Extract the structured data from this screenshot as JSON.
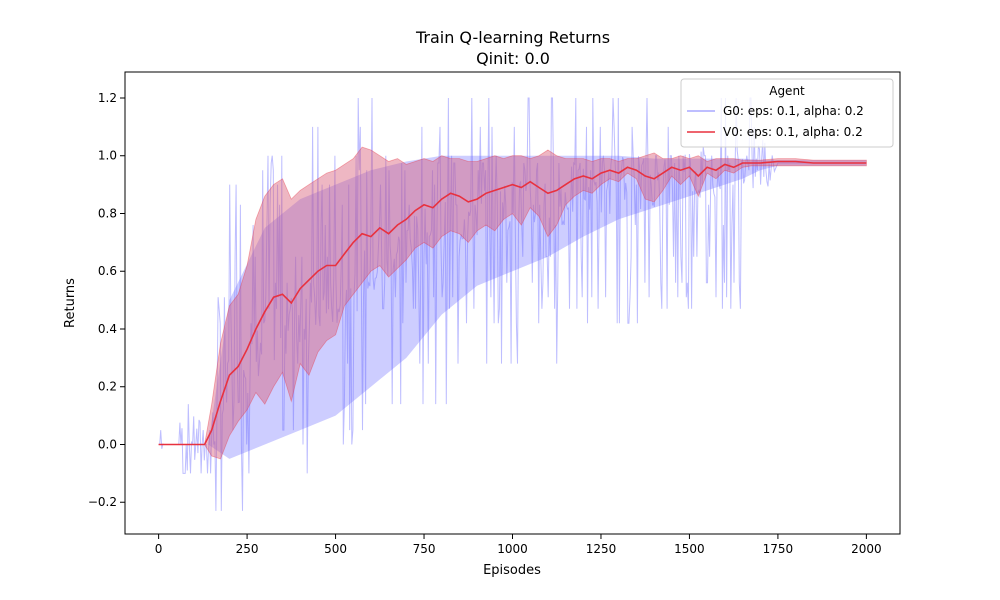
{
  "chart_data": {
    "type": "line",
    "title": "Train Q-learning Returns",
    "subtitle": "Qinit: 0.0",
    "xlabel": "Episodes",
    "ylabel": "Returns",
    "xlim": [
      -95,
      2095
    ],
    "ylim": [
      -0.31,
      1.29
    ],
    "xticks": [
      0,
      250,
      500,
      750,
      1000,
      1250,
      1500,
      1750,
      2000
    ],
    "yticks": [
      -0.2,
      0.0,
      0.2,
      0.4,
      0.6,
      0.8,
      1.0,
      1.2
    ],
    "ytick_labels": [
      "−0.2",
      "0.0",
      "0.2",
      "0.4",
      "0.6",
      "0.8",
      "1.0",
      "1.2"
    ],
    "grid": false,
    "legend": {
      "title": "Agent",
      "position": "top-right"
    },
    "series": [
      {
        "name": "G0: eps: 0.1, alpha: 0.2",
        "color": "#6f6fff",
        "style": "noisy-line-with-band",
        "x": [
          0,
          140,
          200,
          300,
          400,
          500,
          600,
          700,
          800,
          900,
          1000,
          1100,
          1200,
          1300,
          1400,
          1500,
          1600,
          1650,
          1700,
          1750,
          1800,
          1900,
          2000
        ],
        "mean": [
          0.0,
          0.0,
          0.2,
          0.35,
          0.45,
          0.5,
          0.6,
          0.68,
          0.75,
          0.8,
          0.82,
          0.85,
          0.88,
          0.9,
          0.92,
          0.94,
          0.95,
          0.96,
          0.97,
          0.975,
          0.975,
          0.975,
          0.975
        ],
        "lower": [
          0.0,
          0.0,
          -0.05,
          0.0,
          0.05,
          0.1,
          0.2,
          0.3,
          0.45,
          0.55,
          0.6,
          0.65,
          0.72,
          0.78,
          0.82,
          0.86,
          0.9,
          0.92,
          0.95,
          0.965,
          0.965,
          0.965,
          0.965
        ],
        "upper": [
          0.0,
          0.0,
          0.5,
          0.75,
          0.85,
          0.9,
          0.95,
          0.98,
          1.0,
          1.0,
          1.0,
          1.0,
          1.0,
          1.0,
          0.99,
          0.99,
          0.99,
          0.99,
          0.985,
          0.985,
          0.985,
          0.985,
          0.985
        ],
        "noise_top": [
          0.14,
          0.14,
          0.95,
          1.0,
          1.1,
          1.2,
          1.2,
          1.2,
          1.2,
          1.2,
          1.2,
          1.2,
          1.2,
          1.2,
          1.2,
          1.2,
          1.2,
          1.2,
          1.2,
          0.975,
          0.975,
          0.975,
          0.975
        ],
        "noise_bottom": [
          0.0,
          -0.23,
          -0.23,
          -0.23,
          -0.2,
          -0.1,
          0.0,
          0.05,
          0.1,
          0.15,
          0.2,
          0.25,
          0.3,
          0.35,
          0.4,
          0.45,
          0.47,
          0.47,
          0.83,
          0.975,
          0.975,
          0.975,
          0.975
        ]
      },
      {
        "name": "V0: eps: 0.1, alpha: 0.2",
        "color": "#e8313f",
        "style": "line-with-band",
        "x": [
          0,
          130,
          150,
          175,
          200,
          225,
          250,
          275,
          300,
          325,
          350,
          375,
          400,
          425,
          450,
          475,
          500,
          525,
          550,
          575,
          600,
          625,
          650,
          675,
          700,
          725,
          750,
          775,
          800,
          825,
          850,
          875,
          900,
          925,
          950,
          975,
          1000,
          1025,
          1050,
          1075,
          1100,
          1125,
          1150,
          1175,
          1200,
          1225,
          1250,
          1275,
          1300,
          1325,
          1350,
          1375,
          1400,
          1425,
          1450,
          1475,
          1500,
          1525,
          1550,
          1575,
          1600,
          1625,
          1650,
          1675,
          1700,
          1750,
          1800,
          1850,
          1900,
          1950,
          2000
        ],
        "mean": [
          0.0,
          0.0,
          0.05,
          0.15,
          0.24,
          0.27,
          0.33,
          0.4,
          0.46,
          0.51,
          0.52,
          0.49,
          0.54,
          0.57,
          0.6,
          0.62,
          0.62,
          0.66,
          0.7,
          0.73,
          0.72,
          0.75,
          0.73,
          0.76,
          0.78,
          0.81,
          0.83,
          0.82,
          0.85,
          0.87,
          0.86,
          0.84,
          0.85,
          0.87,
          0.88,
          0.89,
          0.9,
          0.89,
          0.91,
          0.89,
          0.87,
          0.88,
          0.9,
          0.92,
          0.93,
          0.92,
          0.94,
          0.95,
          0.94,
          0.96,
          0.95,
          0.93,
          0.92,
          0.94,
          0.96,
          0.95,
          0.96,
          0.93,
          0.96,
          0.95,
          0.97,
          0.96,
          0.975,
          0.975,
          0.975,
          0.98,
          0.98,
          0.975,
          0.975,
          0.975,
          0.975
        ],
        "lower": [
          0.0,
          0.0,
          -0.04,
          -0.05,
          0.03,
          0.08,
          0.12,
          0.18,
          0.14,
          0.2,
          0.25,
          0.15,
          0.28,
          0.24,
          0.32,
          0.36,
          0.38,
          0.48,
          0.52,
          0.56,
          0.6,
          0.62,
          0.58,
          0.61,
          0.64,
          0.68,
          0.7,
          0.68,
          0.72,
          0.74,
          0.73,
          0.7,
          0.74,
          0.76,
          0.74,
          0.78,
          0.8,
          0.76,
          0.82,
          0.79,
          0.72,
          0.76,
          0.83,
          0.86,
          0.88,
          0.87,
          0.9,
          0.92,
          0.91,
          0.94,
          0.92,
          0.85,
          0.84,
          0.88,
          0.93,
          0.9,
          0.93,
          0.86,
          0.94,
          0.92,
          0.95,
          0.94,
          0.96,
          0.965,
          0.965,
          0.965,
          0.965,
          0.965,
          0.965,
          0.965,
          0.965
        ],
        "upper": [
          0.0,
          0.0,
          0.14,
          0.35,
          0.48,
          0.52,
          0.62,
          0.78,
          0.86,
          0.9,
          0.92,
          0.85,
          0.88,
          0.9,
          0.92,
          0.94,
          0.95,
          0.97,
          0.99,
          1.03,
          1.02,
          1.0,
          0.98,
          0.99,
          0.97,
          0.98,
          0.99,
          0.98,
          1.0,
          0.99,
          0.99,
          0.98,
          0.98,
          0.99,
          1.0,
          0.99,
          1.0,
          1.0,
          0.99,
          1.0,
          1.02,
          1.0,
          0.99,
          0.99,
          0.99,
          0.98,
          0.99,
          0.99,
          0.98,
          0.99,
          0.99,
          1.0,
          1.01,
          0.99,
          0.99,
          1.0,
          0.99,
          1.0,
          0.98,
          0.99,
          0.99,
          0.99,
          0.985,
          0.985,
          0.985,
          0.99,
          0.99,
          0.985,
          0.985,
          0.985,
          0.985
        ]
      }
    ]
  }
}
